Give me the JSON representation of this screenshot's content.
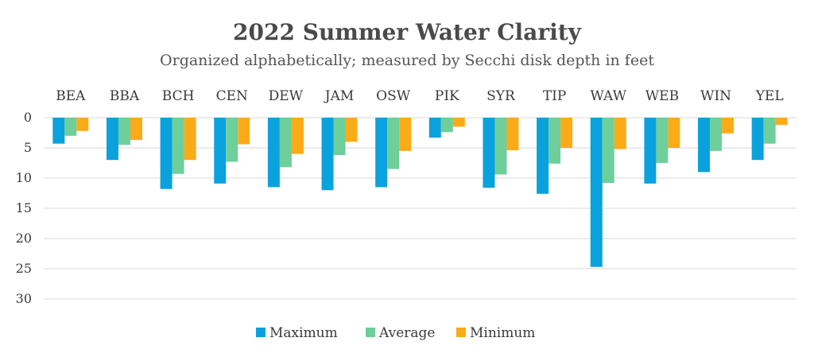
{
  "chart_data": {
    "type": "bar",
    "title": "2022 Summer Water Clarity",
    "subtitle": "Organized alphabetically; measured by Secchi disk depth in feet",
    "categories": [
      "BEA",
      "BBA",
      "BCH",
      "CEN",
      "DEW",
      "JAM",
      "OSW",
      "PIK",
      "SYR",
      "TIP",
      "WAW",
      "WEB",
      "WIN",
      "YEL"
    ],
    "series": [
      {
        "name": "Maximum",
        "color": "#0aa2dd",
        "values": [
          4.3,
          7.0,
          11.8,
          10.9,
          11.5,
          12.0,
          11.5,
          3.3,
          11.6,
          12.6,
          24.7,
          10.9,
          9.0,
          7.0
        ]
      },
      {
        "name": "Average",
        "color": "#6ecf9a",
        "values": [
          3.0,
          4.5,
          9.3,
          7.3,
          8.2,
          6.2,
          8.5,
          2.4,
          9.4,
          7.6,
          10.8,
          7.5,
          5.5,
          4.3
        ]
      },
      {
        "name": "Minimum",
        "color": "#fbab18",
        "values": [
          2.2,
          3.7,
          7.0,
          4.4,
          6.0,
          4.0,
          5.5,
          1.5,
          5.4,
          5.0,
          5.2,
          5.0,
          2.6,
          1.2
        ]
      }
    ],
    "ylim": [
      0,
      30
    ],
    "y_ticks": [
      0,
      5,
      10,
      15,
      20,
      25,
      30
    ],
    "y_inverted": true,
    "categories_on_top": true,
    "grid": true,
    "legend": "bottom-center"
  }
}
